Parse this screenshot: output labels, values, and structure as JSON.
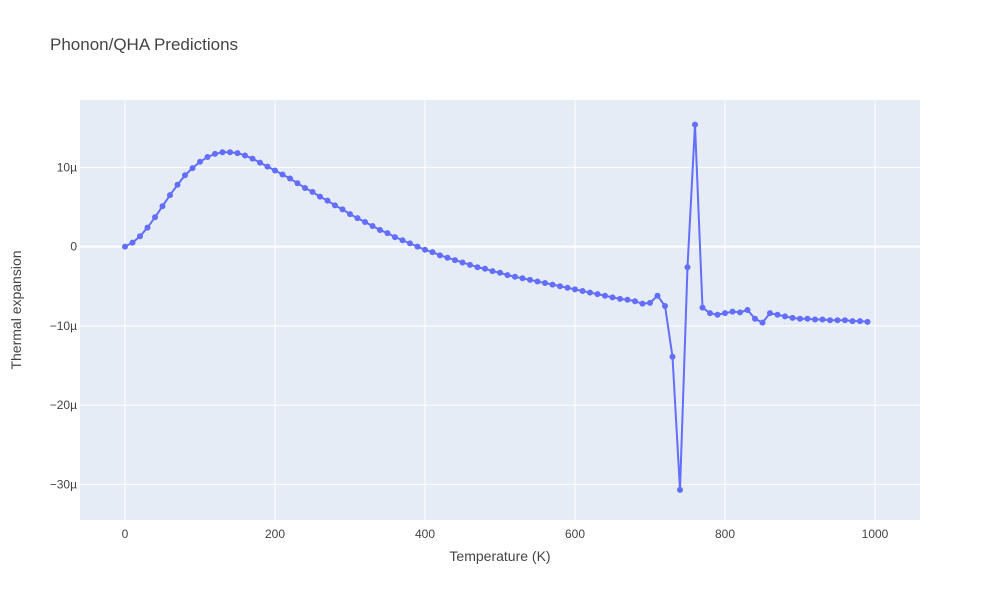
{
  "chart_data": {
    "type": "line",
    "title": "Phonon/QHA Predictions",
    "xlabel": "Temperature (K)",
    "ylabel": "Thermal expansion",
    "xlim": [
      -60,
      1060
    ],
    "ylim": [
      -3.45e-05,
      1.85e-05
    ],
    "x_ticks": [
      0,
      200,
      400,
      600,
      800,
      1000
    ],
    "x_tick_labels": [
      "0",
      "200",
      "400",
      "600",
      "800",
      "1000"
    ],
    "y_ticks": [
      -3e-05,
      -2e-05,
      -1e-05,
      0,
      1e-05
    ],
    "y_tick_labels": [
      "−30µ",
      "−20µ",
      "−10µ",
      "0",
      "10µ"
    ],
    "grid": true,
    "colors": {
      "background": "#e5ecf6",
      "grid": "#ffffff",
      "line": "#636efa",
      "text": "#444444"
    },
    "series": [
      {
        "name": "",
        "mode": "lines+markers",
        "x": [
          0,
          10,
          20,
          30,
          40,
          50,
          60,
          70,
          80,
          90,
          100,
          110,
          120,
          130,
          140,
          150,
          160,
          170,
          180,
          190,
          200,
          210,
          220,
          230,
          240,
          250,
          260,
          270,
          280,
          290,
          300,
          310,
          320,
          330,
          340,
          350,
          360,
          370,
          380,
          390,
          400,
          410,
          420,
          430,
          440,
          450,
          460,
          470,
          480,
          490,
          500,
          510,
          520,
          530,
          540,
          550,
          560,
          570,
          580,
          590,
          600,
          610,
          620,
          630,
          640,
          650,
          660,
          670,
          680,
          690,
          700,
          710,
          720,
          730,
          740,
          750,
          760,
          770,
          780,
          790,
          800,
          810,
          820,
          830,
          840,
          850,
          860,
          870,
          880,
          890,
          900,
          910,
          920,
          930,
          940,
          950,
          960,
          970,
          980,
          990
        ],
        "y": [
          0.0,
          5e-07,
          1.3e-06,
          2.4e-06,
          3.7e-06,
          5.1e-06,
          6.5e-06,
          7.8e-06,
          9e-06,
          9.9e-06,
          1.07e-05,
          1.13e-05,
          1.17e-05,
          1.19e-05,
          1.19e-05,
          1.18e-05,
          1.15e-05,
          1.11e-05,
          1.06e-05,
          1.01e-05,
          9.6e-06,
          9.1e-06,
          8.6e-06,
          8e-06,
          7.4e-06,
          6.9e-06,
          6.3e-06,
          5.8e-06,
          5.2e-06,
          4.7e-06,
          4.1e-06,
          3.6e-06,
          3.1e-06,
          2.6e-06,
          2.1e-06,
          1.7e-06,
          1.2e-06,
          8e-07,
          4e-07,
          0.0,
          -4e-07,
          -7e-07,
          -1.1e-06,
          -1.4e-06,
          -1.7e-06,
          -2e-06,
          -2.3e-06,
          -2.6e-06,
          -2.8e-06,
          -3.1e-06,
          -3.3e-06,
          -3.6e-06,
          -3.8e-06,
          -4e-06,
          -4.2e-06,
          -4.4e-06,
          -4.6e-06,
          -4.8e-06,
          -5e-06,
          -5.2e-06,
          -5.4e-06,
          -5.6e-06,
          -5.8e-06,
          -6e-06,
          -6.2e-06,
          -6.4e-06,
          -6.6e-06,
          -6.7e-06,
          -6.9e-06,
          -7.2e-06,
          -7.1e-06,
          -6.2e-06,
          -7.5e-06,
          -1.39e-05,
          -3.07e-05,
          -2.6e-06,
          1.54e-05,
          -7.7e-06,
          -8.4e-06,
          -8.6e-06,
          -8.4e-06,
          -8.2e-06,
          -8.3e-06,
          -8e-06,
          -9.1e-06,
          -9.6e-06,
          -8.4e-06,
          -8.6e-06,
          -8.8e-06,
          -9e-06,
          -9.1e-06,
          -9.1e-06,
          -9.2e-06,
          -9.2e-06,
          -9.3e-06,
          -9.3e-06,
          -9.3e-06,
          -9.4e-06,
          -9.4e-06,
          -9.5e-06
        ]
      }
    ]
  }
}
